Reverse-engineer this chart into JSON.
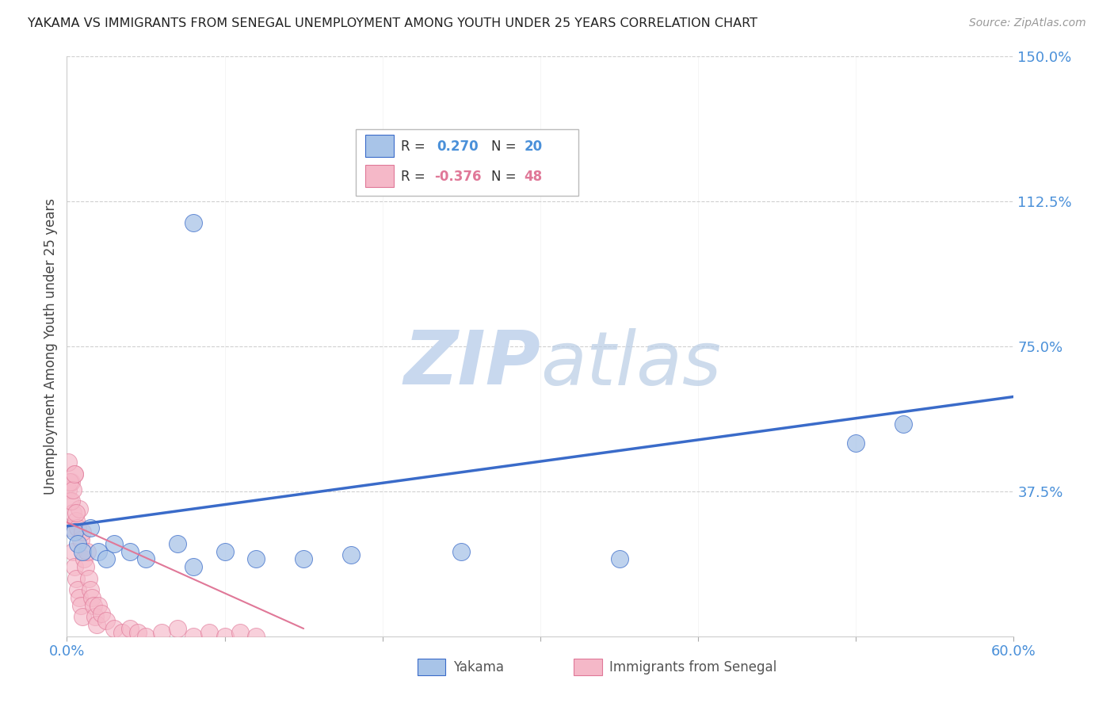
{
  "title": "YAKAMA VS IMMIGRANTS FROM SENEGAL UNEMPLOYMENT AMONG YOUTH UNDER 25 YEARS CORRELATION CHART",
  "source": "Source: ZipAtlas.com",
  "ylabel": "Unemployment Among Youth under 25 years",
  "xlim": [
    0.0,
    0.6
  ],
  "ylim": [
    0.0,
    1.5
  ],
  "xticks": [
    0.0,
    0.1,
    0.2,
    0.3,
    0.4,
    0.5,
    0.6
  ],
  "yticks": [
    0.375,
    0.75,
    1.125,
    1.5
  ],
  "ytick_labels": [
    "37.5%",
    "75.0%",
    "112.5%",
    "150.0%"
  ],
  "blue_color": "#a8c4e8",
  "pink_color": "#f5b8c8",
  "trend_blue_color": "#3a6bc9",
  "trend_pink_color": "#e07898",
  "axis_tick_color": "#4a90d9",
  "grid_color": "#d0d0d0",
  "watermark_zip": "ZIP",
  "watermark_atlas": "atlas",
  "watermark_color": "#c8d8ee",
  "yakama_x": [
    0.005,
    0.007,
    0.01,
    0.015,
    0.02,
    0.025,
    0.03,
    0.04,
    0.05,
    0.07,
    0.08,
    0.1,
    0.12,
    0.15,
    0.18,
    0.25,
    0.35,
    0.5,
    0.53,
    0.08
  ],
  "yakama_y": [
    0.27,
    0.24,
    0.22,
    0.28,
    0.22,
    0.2,
    0.24,
    0.22,
    0.2,
    0.24,
    0.18,
    0.22,
    0.2,
    0.2,
    0.21,
    0.22,
    0.2,
    0.5,
    0.55,
    1.07
  ],
  "senegal_x": [
    0.001,
    0.002,
    0.003,
    0.003,
    0.004,
    0.004,
    0.005,
    0.005,
    0.006,
    0.006,
    0.007,
    0.007,
    0.008,
    0.008,
    0.009,
    0.009,
    0.01,
    0.01,
    0.011,
    0.012,
    0.013,
    0.014,
    0.015,
    0.016,
    0.017,
    0.018,
    0.019,
    0.02,
    0.022,
    0.025,
    0.03,
    0.035,
    0.04,
    0.045,
    0.05,
    0.06,
    0.07,
    0.08,
    0.09,
    0.1,
    0.11,
    0.12,
    0.001,
    0.002,
    0.003,
    0.004,
    0.005,
    0.006
  ],
  "senegal_y": [
    0.38,
    0.35,
    0.4,
    0.28,
    0.32,
    0.22,
    0.42,
    0.18,
    0.3,
    0.15,
    0.28,
    0.12,
    0.33,
    0.1,
    0.25,
    0.08,
    0.27,
    0.05,
    0.2,
    0.18,
    0.22,
    0.15,
    0.12,
    0.1,
    0.08,
    0.05,
    0.03,
    0.08,
    0.06,
    0.04,
    0.02,
    0.01,
    0.02,
    0.01,
    0.0,
    0.01,
    0.02,
    0.0,
    0.01,
    0.0,
    0.01,
    0.0,
    0.45,
    0.4,
    0.35,
    0.38,
    0.42,
    0.32
  ],
  "blue_trend_x0": 0.0,
  "blue_trend_y0": 0.285,
  "blue_trend_x1": 0.6,
  "blue_trend_y1": 0.62,
  "pink_trend_x0": 0.0,
  "pink_trend_y0": 0.295,
  "pink_trend_x1": 0.15,
  "pink_trend_y1": 0.02,
  "legend_r_blue": "R = ",
  "legend_v_blue": " 0.270",
  "legend_n_blue": "N = ",
  "legend_nv_blue": "20",
  "legend_r_pink": "R = ",
  "legend_v_pink": "-0.376",
  "legend_n_pink": "N = ",
  "legend_nv_pink": "48"
}
